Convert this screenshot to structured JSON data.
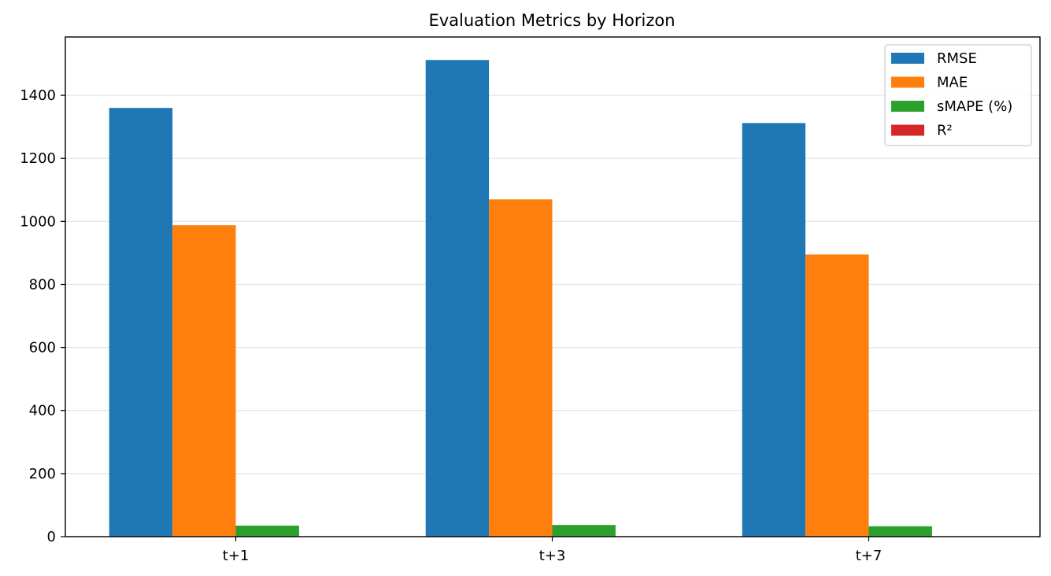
{
  "chart_data": {
    "type": "bar",
    "title": "Evaluation Metrics by Horizon",
    "xlabel": "",
    "ylabel": "",
    "categories": [
      "t+1",
      "t+3",
      "t+7"
    ],
    "series": [
      {
        "name": "RMSE",
        "color": "#1f77b4",
        "values": [
          1360,
          1512,
          1312
        ]
      },
      {
        "name": "MAE",
        "color": "#ff7f0e",
        "values": [
          988,
          1070,
          895
        ]
      },
      {
        "name": "sMAPE (%)",
        "color": "#2ca02c",
        "values": [
          35,
          37,
          33
        ]
      },
      {
        "name": "R²",
        "color": "#d62728",
        "values": [
          0.6,
          0.5,
          0.6
        ]
      }
    ],
    "ylim": [
      0,
      1585
    ],
    "yticks": [
      0,
      200,
      400,
      600,
      800,
      1000,
      1200,
      1400
    ],
    "grid": "y",
    "legend_position": "top-right"
  }
}
